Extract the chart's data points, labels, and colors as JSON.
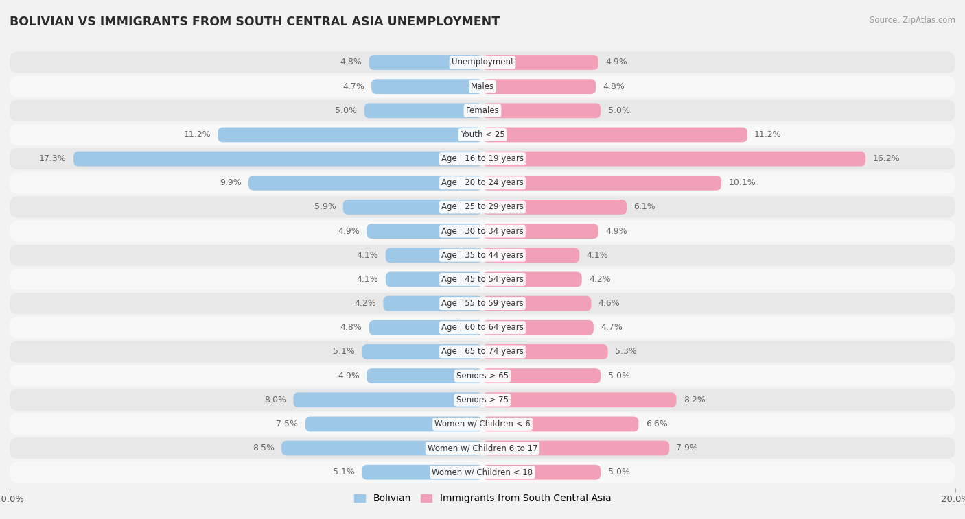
{
  "title": "BOLIVIAN VS IMMIGRANTS FROM SOUTH CENTRAL ASIA UNEMPLOYMENT",
  "source": "Source: ZipAtlas.com",
  "categories": [
    "Unemployment",
    "Males",
    "Females",
    "Youth < 25",
    "Age | 16 to 19 years",
    "Age | 20 to 24 years",
    "Age | 25 to 29 years",
    "Age | 30 to 34 years",
    "Age | 35 to 44 years",
    "Age | 45 to 54 years",
    "Age | 55 to 59 years",
    "Age | 60 to 64 years",
    "Age | 65 to 74 years",
    "Seniors > 65",
    "Seniors > 75",
    "Women w/ Children < 6",
    "Women w/ Children 6 to 17",
    "Women w/ Children < 18"
  ],
  "bolivian": [
    4.8,
    4.7,
    5.0,
    11.2,
    17.3,
    9.9,
    5.9,
    4.9,
    4.1,
    4.1,
    4.2,
    4.8,
    5.1,
    4.9,
    8.0,
    7.5,
    8.5,
    5.1
  ],
  "immigrants": [
    4.9,
    4.8,
    5.0,
    11.2,
    16.2,
    10.1,
    6.1,
    4.9,
    4.1,
    4.2,
    4.6,
    4.7,
    5.3,
    5.0,
    8.2,
    6.6,
    7.9,
    5.0
  ],
  "bolivian_color": "#9ec8e8",
  "immigrant_color": "#f2a0b8",
  "max_val": 20.0,
  "bg_color": "#f2f2f2",
  "row_color_odd": "#e8e8e8",
  "row_color_even": "#f8f8f8",
  "label_color": "#666666",
  "title_color": "#2c2c2c",
  "value_fontsize": 9.0,
  "cat_fontsize": 8.5,
  "legend_bolivian": "Bolivian",
  "legend_immigrant": "Immigrants from South Central Asia"
}
